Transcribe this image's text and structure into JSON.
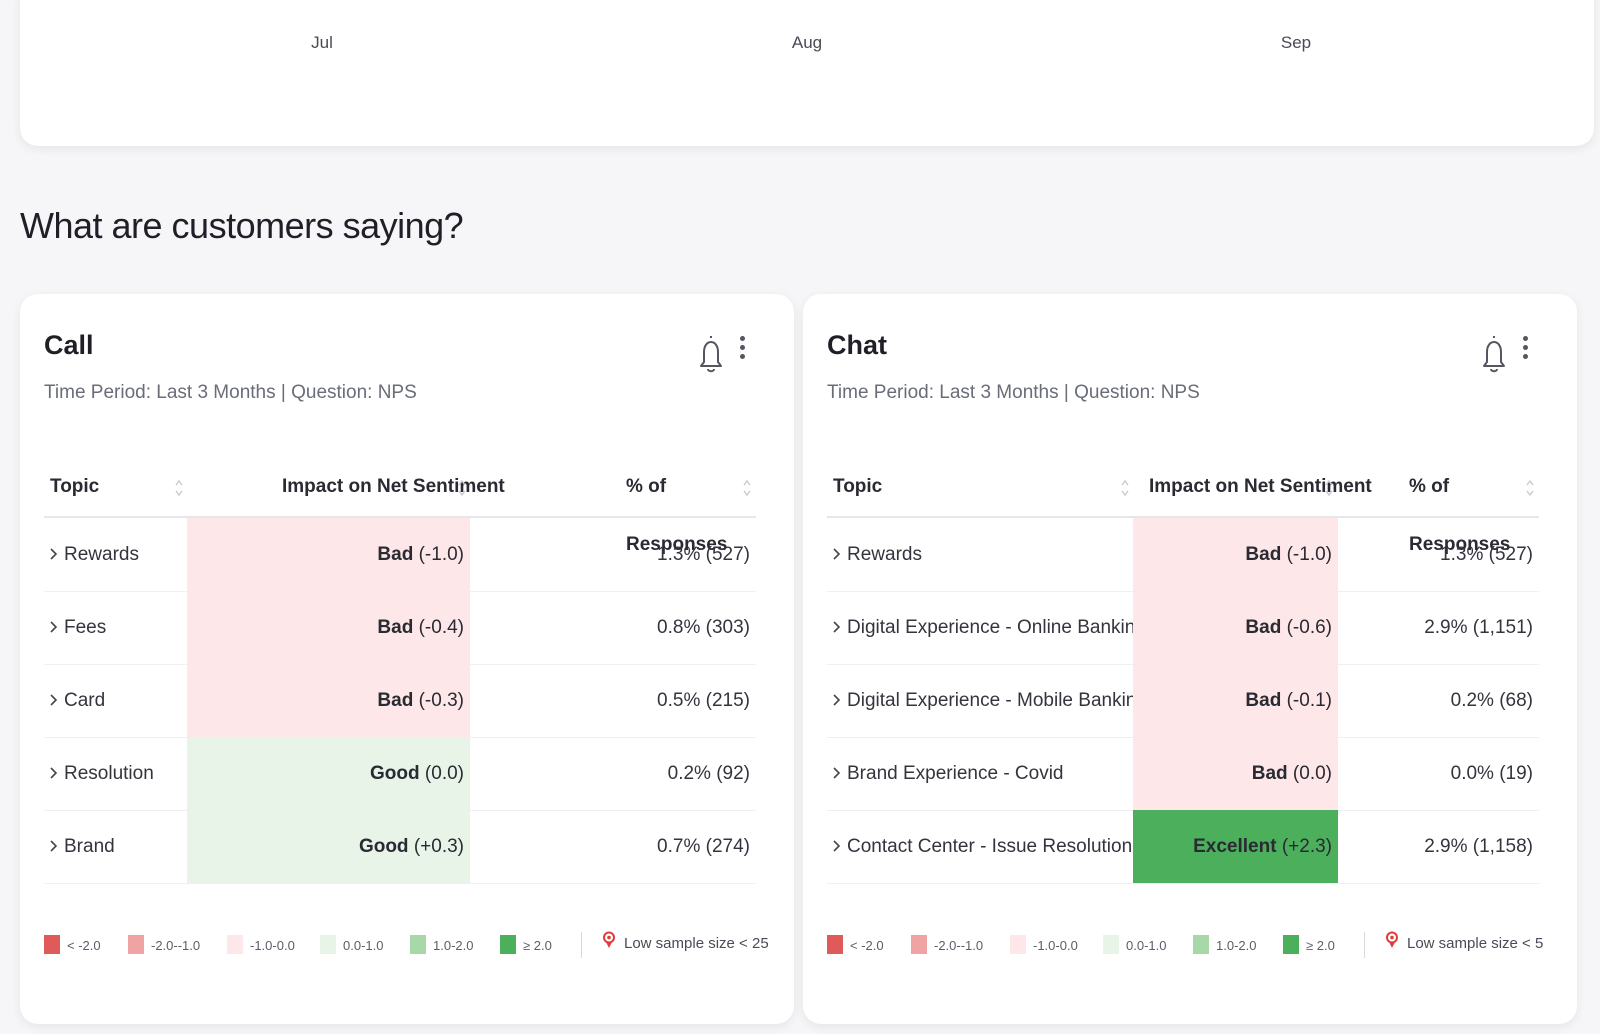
{
  "timeline": {
    "months": [
      "Jul",
      "Aug",
      "Sep"
    ]
  },
  "section_title": "What are customers saying?",
  "colors": {
    "bad_strong": "#e05a5a",
    "bad_medium": "#f0a3a3",
    "bad_light": "#fde7e8",
    "good_light": "#e8f4e8",
    "good_medium": "#a8d8a8",
    "good_strong": "#4caf5c",
    "low_sample_pin": "#e03a3a"
  },
  "table_headers": {
    "topic": "Topic",
    "impact": "Impact on Net Sentiment",
    "responses": "% of Responses"
  },
  "legend": {
    "items": [
      {
        "label": "< -2.0"
      },
      {
        "label": "-2.0--1.0"
      },
      {
        "label": "-1.0-0.0"
      },
      {
        "label": "0.0-1.0"
      },
      {
        "label": "1.0-2.0"
      },
      {
        "label": "≥ 2.0"
      }
    ]
  },
  "panels": {
    "call": {
      "title": "Call",
      "subtitle": "Time Period: Last 3 Months | Question: NPS",
      "low_sample": "Low sample size < 25",
      "rows": [
        {
          "topic": "Rewards",
          "rating": "Bad",
          "score": "(-1.0)",
          "pct": "1.3% (527)"
        },
        {
          "topic": "Fees",
          "rating": "Bad",
          "score": "(-0.4)",
          "pct": "0.8% (303)"
        },
        {
          "topic": "Card",
          "rating": "Bad",
          "score": "(-0.3)",
          "pct": "0.5% (215)"
        },
        {
          "topic": "Resolution",
          "rating": "Good",
          "score": "(0.0)",
          "pct": "0.2% (92)"
        },
        {
          "topic": "Brand",
          "rating": "Good",
          "score": "(+0.3)",
          "pct": "0.7% (274)"
        }
      ]
    },
    "chat": {
      "title": "Chat",
      "subtitle": "Time Period: Last 3 Months | Question: NPS",
      "low_sample": "Low sample size < 5",
      "rows": [
        {
          "topic": "Rewards",
          "rating": "Bad",
          "score": "(-1.0)",
          "pct": "1.3% (527)"
        },
        {
          "topic": "Digital Experience - Online Banking/Website",
          "rating": "Bad",
          "score": "(-0.6)",
          "pct": "2.9% (1,151)"
        },
        {
          "topic": "Digital Experience - Mobile Banking/App",
          "rating": "Bad",
          "score": "(-0.1)",
          "pct": "0.2% (68)"
        },
        {
          "topic": "Brand Experience - Covid",
          "rating": "Bad",
          "score": "(0.0)",
          "pct": "0.0% (19)"
        },
        {
          "topic": "Contact Center - Issue Resolution",
          "rating": "Excellent",
          "score": "(+2.3)",
          "pct": "2.9% (1,158)"
        }
      ]
    }
  }
}
